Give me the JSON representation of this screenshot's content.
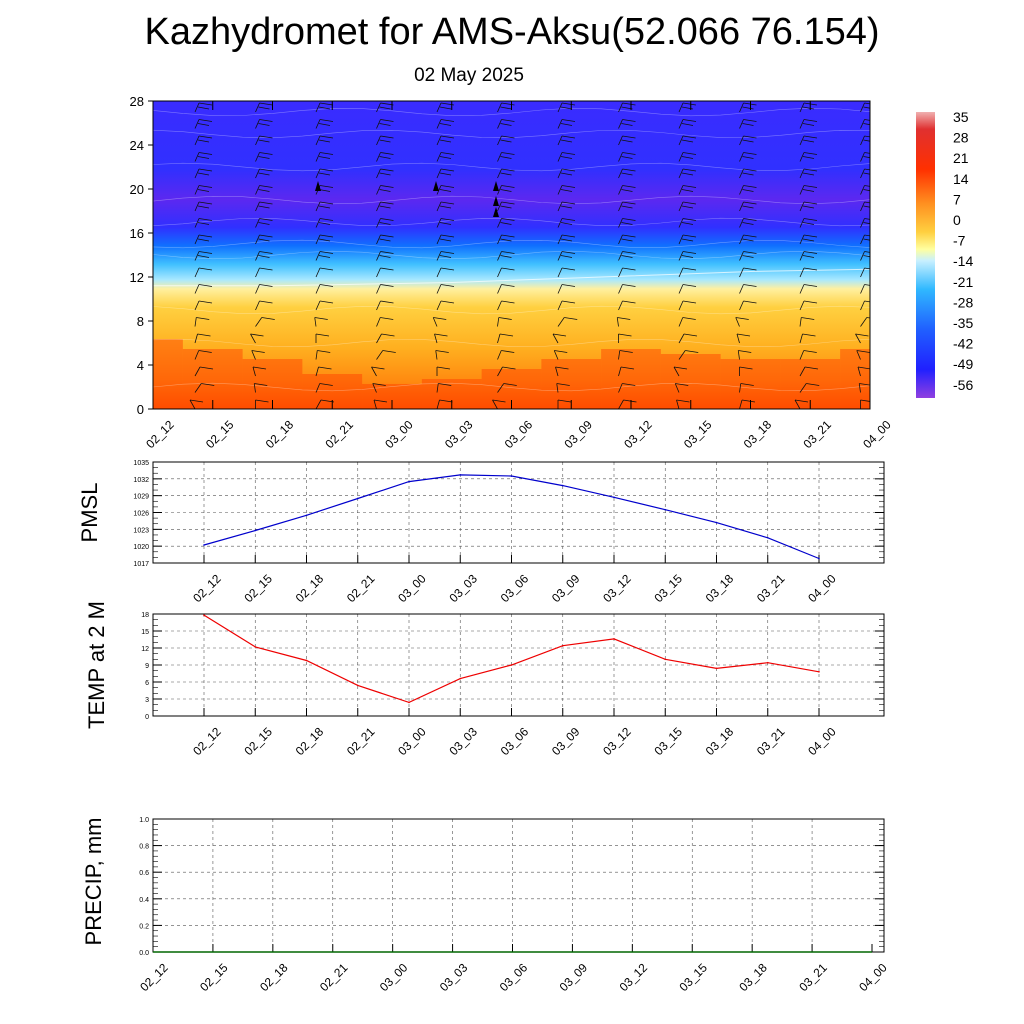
{
  "title": "Kazhydromet for AMS-Aksu(52.066 76.154)",
  "subtitle": "02 May 2025",
  "time_labels": [
    "02_12",
    "02_15",
    "02_18",
    "02_21",
    "03_00",
    "03_03",
    "03_06",
    "03_09",
    "03_12",
    "03_15",
    "03_18",
    "03_21",
    "04_00"
  ],
  "chart_data": [
    {
      "type": "heatmap",
      "id": "cross-section",
      "x": [
        "02_12",
        "02_15",
        "02_18",
        "02_21",
        "03_00",
        "03_03",
        "03_06",
        "03_09",
        "03_12",
        "03_15",
        "03_18",
        "03_21",
        "04_00"
      ],
      "ylim": [
        0,
        28
      ],
      "yticks": [
        0,
        4,
        8,
        12,
        16,
        20,
        24,
        28
      ],
      "ylabel": "",
      "freezing_level": [
        11.2,
        11.2,
        11.2,
        11.3,
        11.4,
        11.5,
        11.7,
        11.9,
        12.1,
        12.3,
        12.5,
        12.6,
        12.7
      ],
      "surface_temp": [
        14,
        12,
        10,
        7,
        5,
        6,
        8,
        10,
        12,
        11,
        10,
        10,
        12
      ],
      "colorbar": {
        "labels": [
          "35",
          "28",
          "21",
          "14",
          "7",
          "0",
          "-7",
          "-14",
          "-21",
          "-28",
          "-35",
          "-42",
          "-49",
          "-56"
        ],
        "range": [
          -60,
          38
        ]
      }
    },
    {
      "type": "line",
      "id": "pmsl",
      "ylabel": "PMSL",
      "ylim": [
        1017,
        1035
      ],
      "yticks": [
        1017,
        1020,
        1023,
        1026,
        1029,
        1032,
        1035
      ],
      "x": [
        "02_12",
        "02_15",
        "02_18",
        "02_21",
        "03_00",
        "03_03",
        "03_06",
        "03_09",
        "03_12",
        "03_15",
        "03_18",
        "03_21",
        "04_00"
      ],
      "series": [
        {
          "values": [
            1020.2,
            1022.8,
            1025.5,
            1028.5,
            1031.5,
            1032.7,
            1032.5,
            1030.8,
            1028.7,
            1026.5,
            1024.2,
            1021.5,
            1017.8
          ],
          "color": "#0000cc"
        }
      ]
    },
    {
      "type": "line",
      "id": "temp2m",
      "ylabel": "TEMP at 2 M",
      "ylim": [
        0,
        18
      ],
      "yticks": [
        0,
        3,
        6,
        9,
        12,
        15,
        18
      ],
      "x": [
        "02_12",
        "02_15",
        "02_18",
        "02_21",
        "03_00",
        "03_03",
        "03_06",
        "03_09",
        "03_12",
        "03_15",
        "03_18",
        "03_21",
        "04_00"
      ],
      "series": [
        {
          "values": [
            17.8,
            12.2,
            9.8,
            5.4,
            2.4,
            6.6,
            9.0,
            12.4,
            13.6,
            10.0,
            8.4,
            9.4,
            7.8
          ],
          "color": "#ee0000"
        }
      ]
    },
    {
      "type": "line",
      "id": "precip",
      "ylabel": "PRECIP, mm",
      "ylim": [
        0,
        1
      ],
      "yticks": [
        "0.0",
        "0.2",
        "0.4",
        "0.6",
        "0.8",
        "1.0"
      ],
      "x": [
        "02_12",
        "02_15",
        "02_18",
        "02_21",
        "03_00",
        "03_03",
        "03_06",
        "03_09",
        "03_12",
        "03_15",
        "03_18",
        "03_21",
        "04_00"
      ],
      "series": [
        {
          "values": [
            0,
            0,
            0,
            0,
            0,
            0,
            0,
            0,
            0,
            0,
            0,
            0,
            0
          ],
          "color": "#006600"
        }
      ]
    }
  ]
}
